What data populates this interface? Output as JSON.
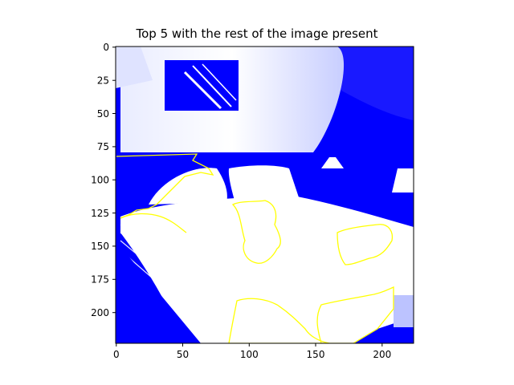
{
  "figure": {
    "title": "Top 5 with the rest of the image present"
  },
  "axes": {
    "x_ticks": [
      "0",
      "50",
      "100",
      "150",
      "200"
    ],
    "y_ticks": [
      "0",
      "25",
      "50",
      "75",
      "100",
      "125",
      "150",
      "175",
      "200"
    ],
    "xlim": [
      0,
      224
    ],
    "ylim": [
      224,
      0
    ]
  },
  "image": {
    "description_colors": {
      "background_mask": "#0000ff",
      "kept_pixels": "#ffffff",
      "contour": "#ffff00"
    }
  }
}
